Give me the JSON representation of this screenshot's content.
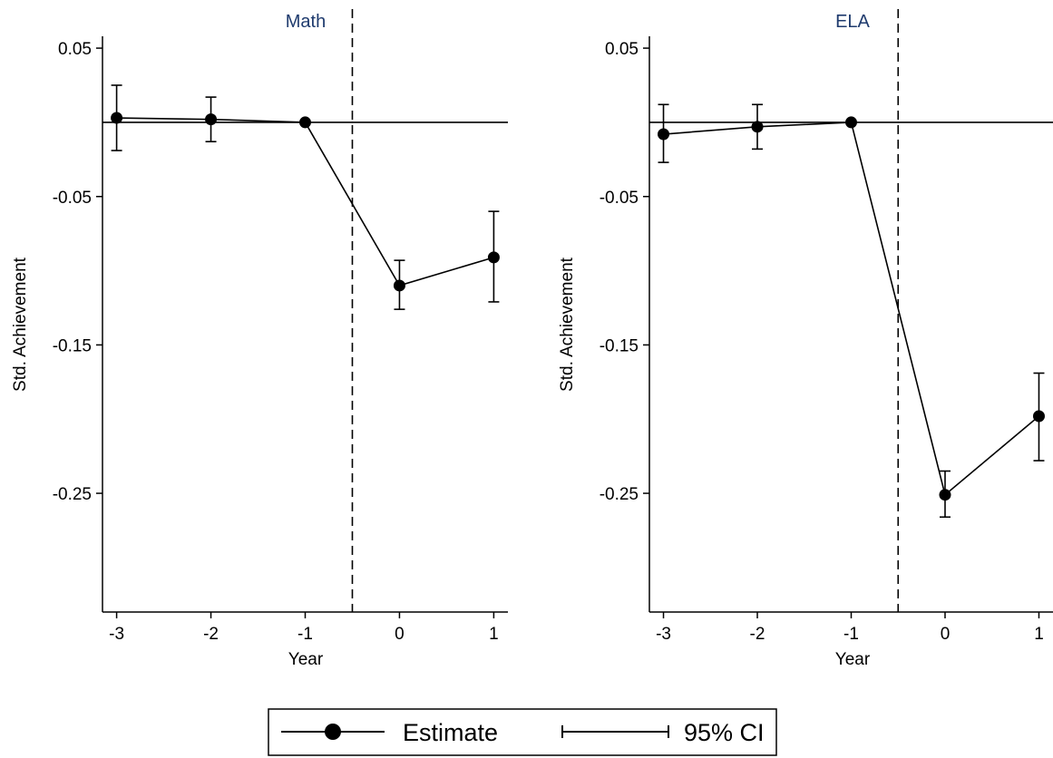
{
  "chart_data": [
    {
      "type": "line",
      "title": "Math",
      "xlabel": "Year",
      "ylabel": "Std. Achievement",
      "x": [
        -3,
        -2,
        -1,
        0,
        1
      ],
      "x_ticks": [
        "-3",
        "-2",
        "-1",
        "0",
        "1"
      ],
      "y_ticks": [
        "0.05",
        "-0.05",
        "-0.15",
        "-0.25"
      ],
      "xlim": [
        -3.15,
        1.15
      ],
      "ylim": [
        -0.33,
        0.058
      ],
      "reference_hline": 0,
      "reference_vline": -0.5,
      "series": [
        {
          "name": "Estimate",
          "values": [
            0.003,
            0.002,
            0.0,
            -0.11,
            -0.091
          ],
          "ci_low": [
            -0.019,
            -0.013,
            0.0,
            -0.126,
            -0.121
          ],
          "ci_high": [
            0.025,
            0.017,
            0.0,
            -0.093,
            -0.06
          ]
        }
      ]
    },
    {
      "type": "line",
      "title": "ELA",
      "xlabel": "Year",
      "ylabel": "Std. Achievement",
      "x": [
        -3,
        -2,
        -1,
        0,
        1
      ],
      "x_ticks": [
        "-3",
        "-2",
        "-1",
        "0",
        "1"
      ],
      "y_ticks": [
        "0.05",
        "-0.05",
        "-0.15",
        "-0.25"
      ],
      "xlim": [
        -3.15,
        1.15
      ],
      "ylim": [
        -0.33,
        0.058
      ],
      "reference_hline": 0,
      "reference_vline": -0.5,
      "series": [
        {
          "name": "Estimate",
          "values": [
            -0.008,
            -0.003,
            0.0,
            -0.251,
            -0.198
          ],
          "ci_low": [
            -0.027,
            -0.018,
            0.0,
            -0.266,
            -0.228
          ],
          "ci_high": [
            0.012,
            0.012,
            0.0,
            -0.235,
            -0.169
          ]
        }
      ]
    }
  ],
  "legend": {
    "estimate_label": "Estimate",
    "ci_label": "95% CI"
  }
}
